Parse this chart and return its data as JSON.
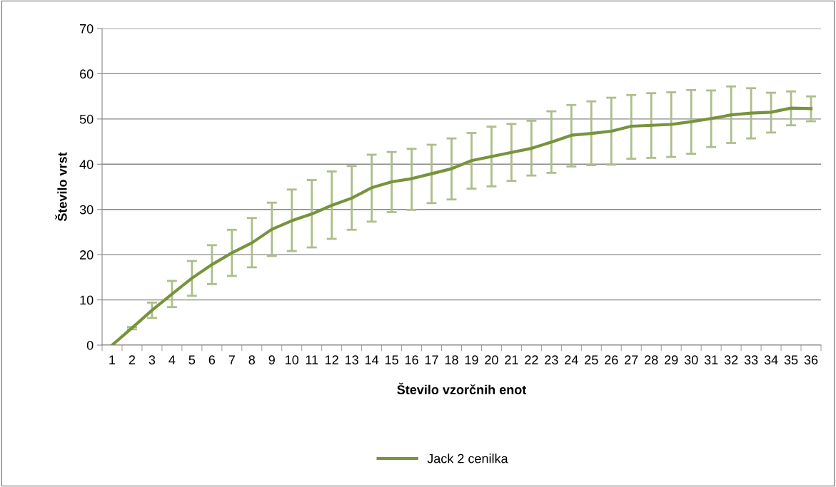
{
  "chart_data": {
    "type": "line",
    "xlabel": "Število vzorčnih enot",
    "ylabel": "Število vrst",
    "categories": [
      "1",
      "2",
      "3",
      "4",
      "5",
      "6",
      "7",
      "8",
      "9",
      "10",
      "11",
      "12",
      "13",
      "14",
      "15",
      "16",
      "17",
      "18",
      "19",
      "20",
      "21",
      "22",
      "23",
      "24",
      "25",
      "26",
      "27",
      "28",
      "29",
      "30",
      "31",
      "32",
      "33",
      "34",
      "35",
      "36"
    ],
    "series": [
      {
        "name": "Jack 2 cenilka",
        "color": "#77933c",
        "values": [
          0,
          3.8,
          7.7,
          11.3,
          14.8,
          17.8,
          20.4,
          22.6,
          25.6,
          27.5,
          29,
          30.9,
          32.5,
          34.8,
          36.1,
          36.8,
          37.9,
          39,
          40.8,
          41.7,
          42.6,
          43.5,
          44.9,
          46.4,
          46.8,
          47.3,
          48.4,
          48.6,
          48.8,
          49.4,
          50.1,
          50.9,
          51.3,
          51.5,
          52.4,
          52.3
        ],
        "errors": [
          null,
          [
            3.5,
            4.0
          ],
          [
            6,
            9.4
          ],
          [
            8.4,
            14.2
          ],
          [
            10.9,
            18.6
          ],
          [
            13.5,
            22.1
          ],
          [
            15.3,
            25.5
          ],
          [
            17.2,
            28.1
          ],
          [
            19.7,
            31.5
          ],
          [
            20.8,
            34.4
          ],
          [
            21.6,
            36.5
          ],
          [
            23.5,
            38.4
          ],
          [
            25.5,
            39.6
          ],
          [
            27.3,
            42.1
          ],
          [
            29.4,
            42.7
          ],
          [
            29.9,
            43.4
          ],
          [
            31.4,
            44.3
          ],
          [
            32.2,
            45.7
          ],
          [
            34.6,
            46.9
          ],
          [
            35.1,
            48.3
          ],
          [
            36.3,
            48.9
          ],
          [
            37.5,
            49.6
          ],
          [
            38.1,
            51.7
          ],
          [
            39.5,
            53.1
          ],
          [
            39.8,
            53.9
          ],
          [
            39.9,
            54.7
          ],
          [
            41.2,
            55.3
          ],
          [
            41.4,
            55.7
          ],
          [
            41.6,
            55.9
          ],
          [
            42.3,
            56.4
          ],
          [
            43.8,
            56.3
          ],
          [
            44.7,
            57.2
          ],
          [
            45.7,
            56.8
          ],
          [
            47,
            55.8
          ],
          [
            48.6,
            56.1
          ],
          [
            49.5,
            55
          ]
        ]
      }
    ],
    "ylim": [
      0,
      70
    ],
    "yticks": [
      0,
      10,
      20,
      30,
      40,
      50,
      60,
      70
    ],
    "grid": "y",
    "legend": "bottom",
    "marker": "none",
    "line_style": "solid"
  }
}
